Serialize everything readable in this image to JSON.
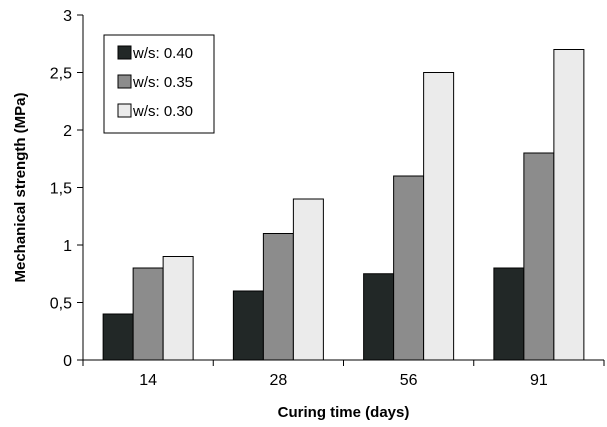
{
  "chart_data": {
    "type": "bar",
    "title": "",
    "xlabel": "Curing time (days)",
    "ylabel": "Mechanical strength (MPa)",
    "categories": [
      "14",
      "28",
      "56",
      "91"
    ],
    "ylim": [
      0,
      3
    ],
    "yticks": [
      0,
      0.5,
      1,
      1.5,
      2,
      2.5,
      3
    ],
    "ytick_labels": [
      "0",
      "0,5",
      "1",
      "1,5",
      "2",
      "2,5",
      "3"
    ],
    "grid": false,
    "legend_position": "top-left",
    "series": [
      {
        "name": "w/s: 0.40",
        "color": "#222827",
        "values": [
          0.4,
          0.6,
          0.75,
          0.8
        ]
      },
      {
        "name": "w/s: 0.35",
        "color": "#8c8c8c",
        "values": [
          0.8,
          1.1,
          1.6,
          1.8
        ]
      },
      {
        "name": "w/s: 0.30",
        "color": "#ebebeb",
        "values": [
          0.9,
          1.4,
          2.5,
          2.7
        ]
      }
    ]
  }
}
